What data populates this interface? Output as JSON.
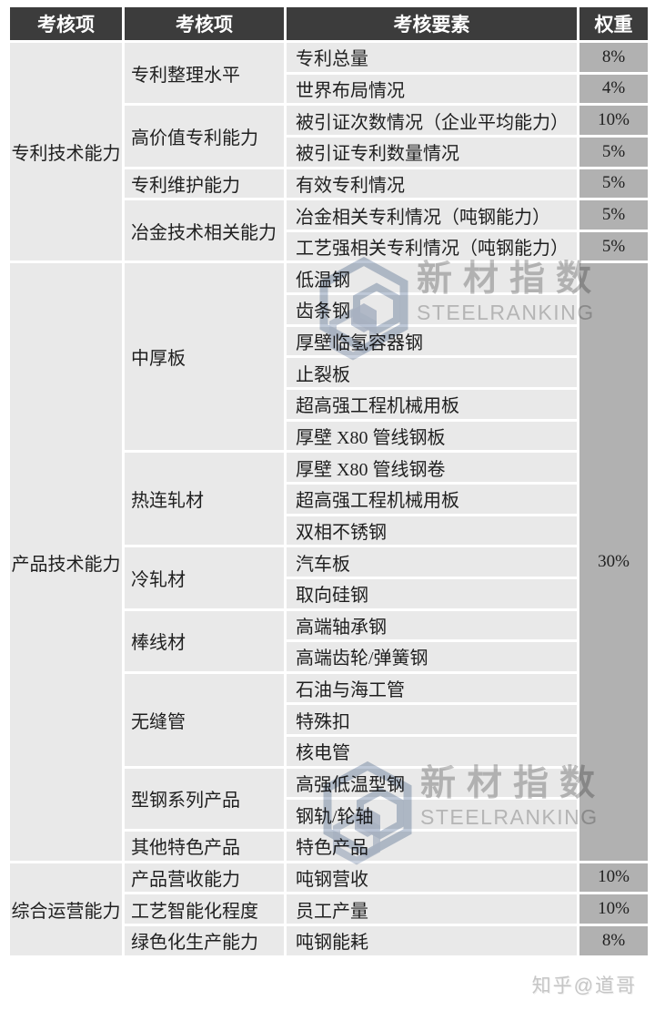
{
  "page": {
    "credit": "知乎@道哥"
  },
  "colors": {
    "header_bg": "#3c3c3c",
    "header_text": "#ffffff",
    "cell_bg": "#e9e9e9",
    "weight_cell_bg": "#b1b1b1",
    "body_text": "#1f1f1f",
    "grid_line": "#ffffff",
    "watermark_text": "#c4c4c4",
    "watermark_logo": "#b7c2d3"
  },
  "table": {
    "headers": [
      "考核项",
      "考核项",
      "考核要素",
      "权重"
    ],
    "sections": [
      {
        "category": "专利技术能力",
        "groups": [
          {
            "name": "专利整理水平",
            "items": [
              {
                "element": "专利总量",
                "weight": "8%"
              },
              {
                "element": "世界布局情况",
                "weight": "4%"
              }
            ]
          },
          {
            "name": "高价值专利能力",
            "items": [
              {
                "element": "被引证次数情况（企业平均能力）",
                "weight": "10%"
              },
              {
                "element": "被引证专利数量情况",
                "weight": "5%"
              }
            ]
          },
          {
            "name": "专利维护能力",
            "items": [
              {
                "element": "有效专利情况",
                "weight": "5%"
              }
            ]
          },
          {
            "name": "冶金技术相关能力",
            "items": [
              {
                "element": "冶金相关专利情况（吨钢能力）",
                "weight": "5%"
              },
              {
                "element": "工艺强相关专利情况（吨钢能力）",
                "weight": "5%"
              }
            ]
          }
        ]
      },
      {
        "category": "产品技术能力",
        "merged_weight": "30%",
        "groups": [
          {
            "name": "中厚板",
            "items": [
              {
                "element": "低温钢"
              },
              {
                "element": "齿条钢"
              },
              {
                "element": "厚壁临氢容器钢"
              },
              {
                "element": "止裂板"
              },
              {
                "element": "超高强工程机械用板"
              },
              {
                "element": "厚壁 X80 管线钢板"
              }
            ]
          },
          {
            "name": "热连轧材",
            "items": [
              {
                "element": "厚壁 X80 管线钢卷"
              },
              {
                "element": "超高强工程机械用板"
              },
              {
                "element": "双相不锈钢"
              }
            ]
          },
          {
            "name": "冷轧材",
            "items": [
              {
                "element": "汽车板"
              },
              {
                "element": "取向硅钢"
              }
            ]
          },
          {
            "name": "棒线材",
            "items": [
              {
                "element": "高端轴承钢"
              },
              {
                "element": "高端齿轮/弹簧钢"
              }
            ]
          },
          {
            "name": "无缝管",
            "items": [
              {
                "element": "石油与海工管"
              },
              {
                "element": "特殊扣"
              },
              {
                "element": "核电管"
              }
            ]
          },
          {
            "name": "型钢系列产品",
            "items": [
              {
                "element": "高强低温型钢"
              },
              {
                "element": "钢轨/轮轴"
              }
            ]
          },
          {
            "name": "其他特色产品",
            "items": [
              {
                "element": "特色产品"
              }
            ]
          }
        ]
      },
      {
        "category": "综合运营能力",
        "groups": [
          {
            "name": "产品营收能力",
            "items": [
              {
                "element": "吨钢营收",
                "weight": "10%"
              }
            ]
          },
          {
            "name": "工艺智能化程度",
            "items": [
              {
                "element": "员工产量",
                "weight": "10%"
              }
            ]
          },
          {
            "name": "绿色化生产能力",
            "items": [
              {
                "element": "吨钢能耗",
                "weight": "8%"
              }
            ]
          }
        ]
      }
    ]
  },
  "watermarks": [
    {
      "brand_cn": "新材指数",
      "brand_en": "STEELRANKING"
    },
    {
      "brand_cn": "新材指数",
      "brand_en": "STEELRANKING"
    }
  ]
}
